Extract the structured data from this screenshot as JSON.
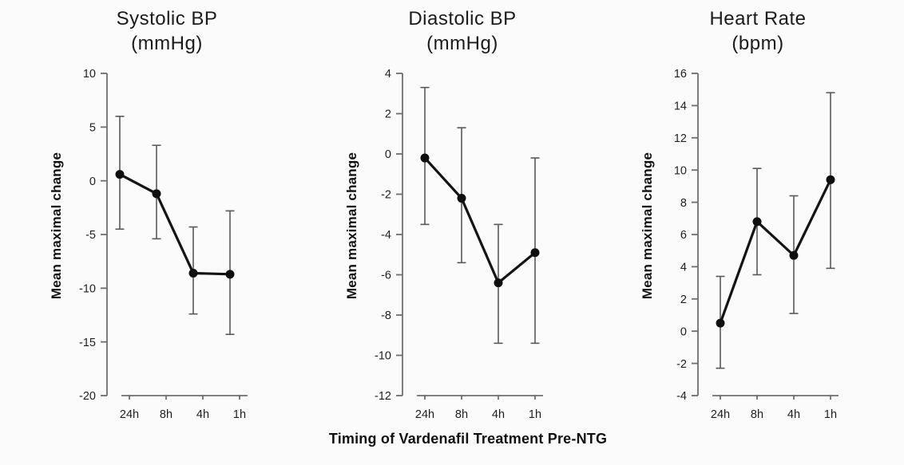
{
  "figure": {
    "xlabel": "Timing of Vardenafil Treatment Pre-NTG",
    "background": "#fbfbfb"
  },
  "colors": {
    "axis": "#6e6e6e",
    "error_bar": "#595959",
    "line": "#141414",
    "point": "#0f0f0f",
    "text": "#1f1f1f"
  },
  "chart_data": [
    {
      "type": "line",
      "title": "Systolic BP",
      "subtitle": "(mmHg)",
      "ylabel": "Mean maximal change",
      "categories": [
        "24h",
        "8h",
        "4h",
        "1h"
      ],
      "values": [
        0.6,
        -1.2,
        -8.6,
        -8.7
      ],
      "error_low": [
        -4.5,
        -5.4,
        -12.4,
        -14.3
      ],
      "error_high": [
        6.0,
        3.3,
        -4.3,
        -2.8
      ],
      "ylim": [
        -20,
        10
      ],
      "ytick_step": 5,
      "grid": false,
      "legend": "none"
    },
    {
      "type": "line",
      "title": "Diastolic BP",
      "subtitle": "(mmHg)",
      "ylabel": "Mean maximal change",
      "categories": [
        "24h",
        "8h",
        "4h",
        "1h"
      ],
      "values": [
        -0.2,
        -2.2,
        -6.4,
        -4.9
      ],
      "error_low": [
        -3.5,
        -5.4,
        -9.4,
        -9.4
      ],
      "error_high": [
        3.3,
        1.3,
        -3.5,
        -0.2
      ],
      "ylim": [
        -12,
        4
      ],
      "ytick_step": 2,
      "grid": false,
      "legend": "none"
    },
    {
      "type": "line",
      "title": "Heart Rate",
      "subtitle": "(bpm)",
      "ylabel": "Mean maximal change",
      "categories": [
        "24h",
        "8h",
        "4h",
        "1h"
      ],
      "values": [
        0.5,
        6.8,
        4.7,
        9.4
      ],
      "error_low": [
        -2.3,
        3.5,
        1.1,
        3.9
      ],
      "error_high": [
        3.4,
        10.1,
        8.4,
        14.8
      ],
      "ylim": [
        -4,
        16
      ],
      "ytick_step": 2,
      "grid": false,
      "legend": "none"
    }
  ]
}
